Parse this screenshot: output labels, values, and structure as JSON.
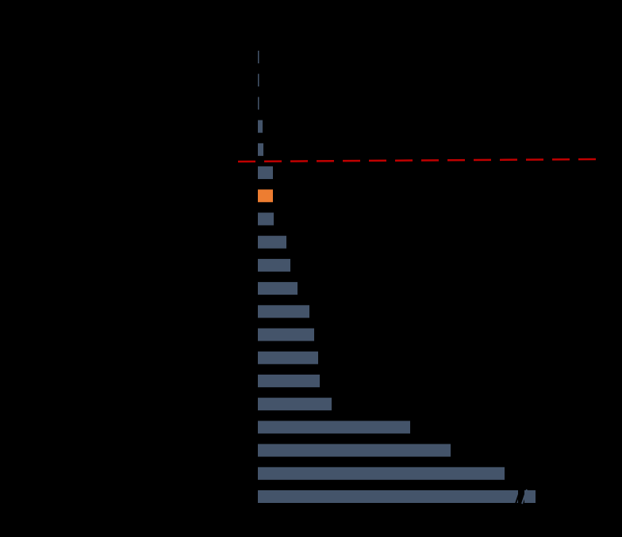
{
  "chart_data": {
    "type": "bar",
    "orientation": "horizontal",
    "categories": [
      null,
      null,
      null,
      null,
      null,
      null,
      null,
      null,
      null,
      null,
      null,
      null,
      null,
      null,
      null,
      null,
      null,
      null,
      null,
      null
    ],
    "values": [
      1,
      1,
      1,
      6,
      7,
      19,
      19,
      20,
      36,
      41,
      50,
      65,
      71,
      76,
      78,
      93,
      192,
      243,
      311,
      350
    ],
    "colors": [
      "#44546a",
      "#44546a",
      "#44546a",
      "#44546a",
      "#44546a",
      "#44546a",
      "#ed7d31",
      "#44546a",
      "#44546a",
      "#44546a",
      "#44546a",
      "#44546a",
      "#44546a",
      "#44546a",
      "#44546a",
      "#44546a",
      "#44546a",
      "#44546a",
      "#44546a",
      "#44546a"
    ],
    "xlim": [
      0,
      400
    ]
  }
}
